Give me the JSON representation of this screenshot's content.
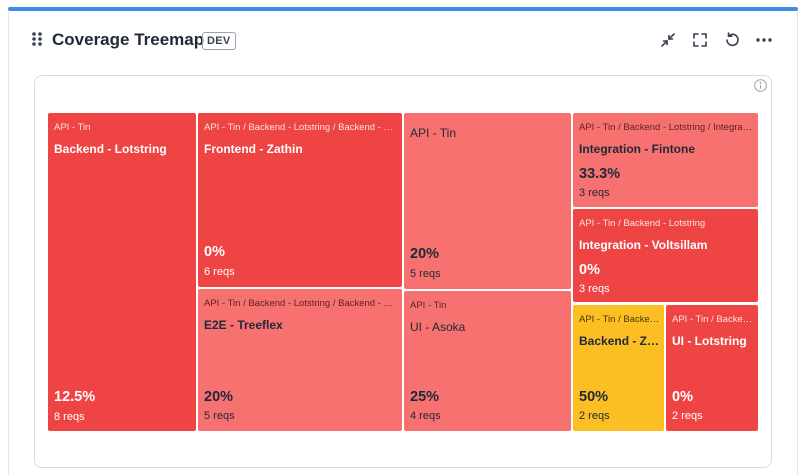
{
  "header": {
    "title": "Coverage Treemap",
    "badge": "DEV"
  },
  "toolbar": {
    "icons": [
      "collapse-icon",
      "fullscreen-icon",
      "refresh-icon",
      "more-icon"
    ]
  },
  "colors": {
    "accent": "#3b8ee6",
    "low": "#ef4444",
    "medium": "#f87171",
    "high": "#fbbf24"
  },
  "tiles": [
    {
      "path": "API - Tin",
      "name": "Backend - Lotstring",
      "pct": "12.5%",
      "reqs": "8 reqs",
      "color": "red"
    },
    {
      "path": "API - Tin / Backend - Lotstring / Backend - Zathin",
      "name": "Frontend - Zathin",
      "pct": "0%",
      "reqs": "6 reqs",
      "color": "red"
    },
    {
      "path": "API - Tin / Backend - Lotstring / Backend - Treeflex",
      "name": "E2E - Treeflex",
      "pct": "20%",
      "reqs": "5 reqs",
      "color": "pink"
    },
    {
      "path": "",
      "name": "API - Tin",
      "pct": "20%",
      "reqs": "5 reqs",
      "color": "pink"
    },
    {
      "path": "API - Tin",
      "name": "UI - Asoka",
      "pct": "25%",
      "reqs": "4 reqs",
      "color": "pink"
    },
    {
      "path": "API - Tin / Backend - Lotstring / Integration",
      "name": "Integration - Fintone",
      "pct": "33.3%",
      "reqs": "3 reqs",
      "color": "pink"
    },
    {
      "path": "API - Tin / Backend - Lotstring",
      "name": "Integration - Voltsillam",
      "pct": "0%",
      "reqs": "3 reqs",
      "color": "red"
    },
    {
      "path": "API - Tin / Backend - Zathin",
      "name": "Backend - Zathin",
      "pct": "50%",
      "reqs": "2 reqs",
      "color": "yellow"
    },
    {
      "path": "API - Tin / Backend - Lotstring",
      "name": "UI - Lotstring",
      "pct": "0%",
      "reqs": "2 reqs",
      "color": "red"
    }
  ]
}
